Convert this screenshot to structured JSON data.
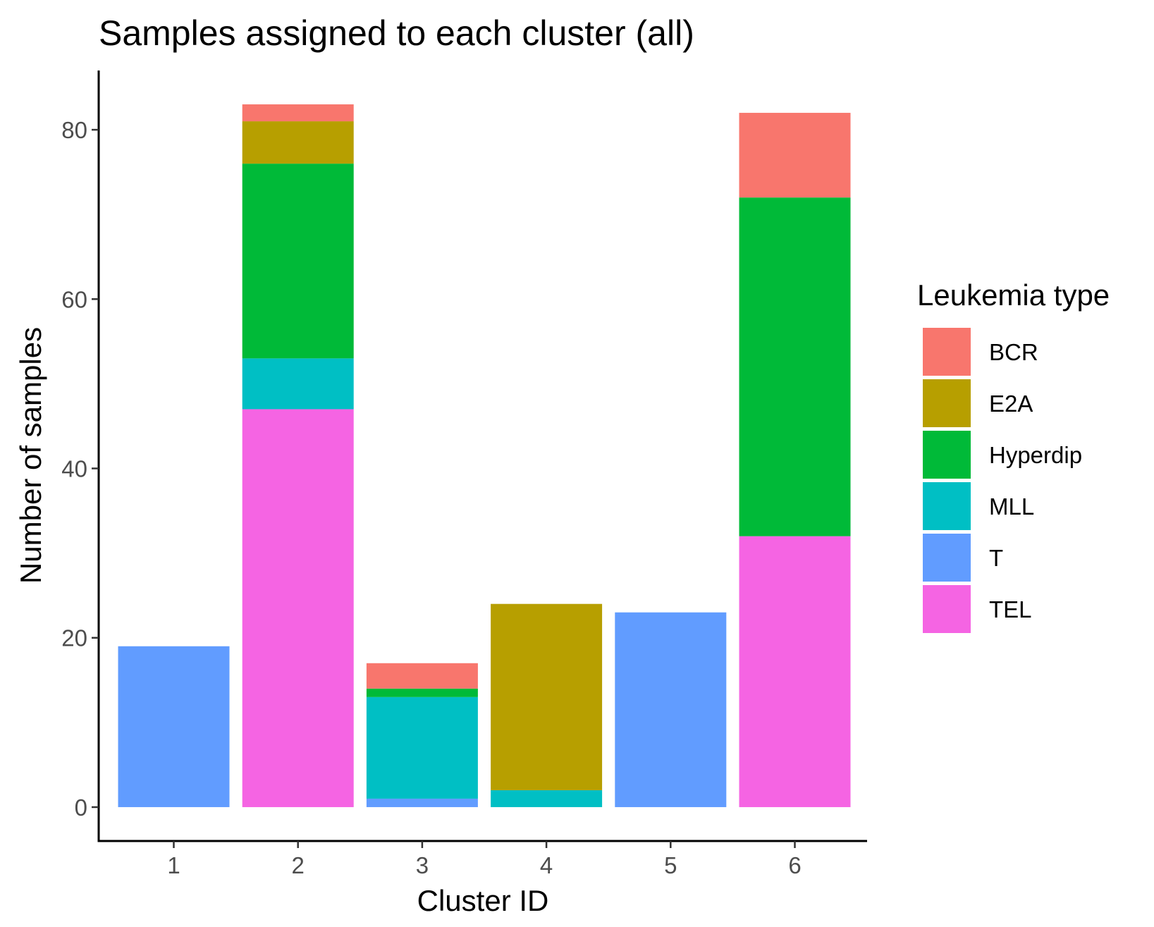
{
  "chart_data": {
    "type": "bar",
    "stacked": true,
    "title": "Samples assigned to each cluster (all)",
    "xlabel": "Cluster ID",
    "ylabel": "Number of samples",
    "categories": [
      "1",
      "2",
      "3",
      "4",
      "5",
      "6"
    ],
    "y_ticks": [
      "0",
      "20",
      "40",
      "60",
      "80"
    ],
    "ylim": [
      -4,
      87
    ],
    "grid": false,
    "legend": {
      "title": "Leukemia type",
      "position": "right"
    },
    "series": [
      {
        "name": "BCR",
        "color": "#F8766D",
        "values": [
          0,
          2,
          3,
          0,
          0,
          10
        ]
      },
      {
        "name": "E2A",
        "color": "#B79F00",
        "values": [
          0,
          5,
          0,
          22,
          0,
          0
        ]
      },
      {
        "name": "Hyperdip",
        "color": "#00BA38",
        "values": [
          0,
          23,
          1,
          0,
          0,
          40
        ]
      },
      {
        "name": "MLL",
        "color": "#00BFC4",
        "values": [
          0,
          6,
          12,
          2,
          0,
          0
        ]
      },
      {
        "name": "T",
        "color": "#619CFF",
        "values": [
          19,
          0,
          1,
          0,
          23,
          0
        ]
      },
      {
        "name": "TEL",
        "color": "#F564E3",
        "values": [
          0,
          47,
          0,
          0,
          0,
          32
        ]
      }
    ]
  }
}
